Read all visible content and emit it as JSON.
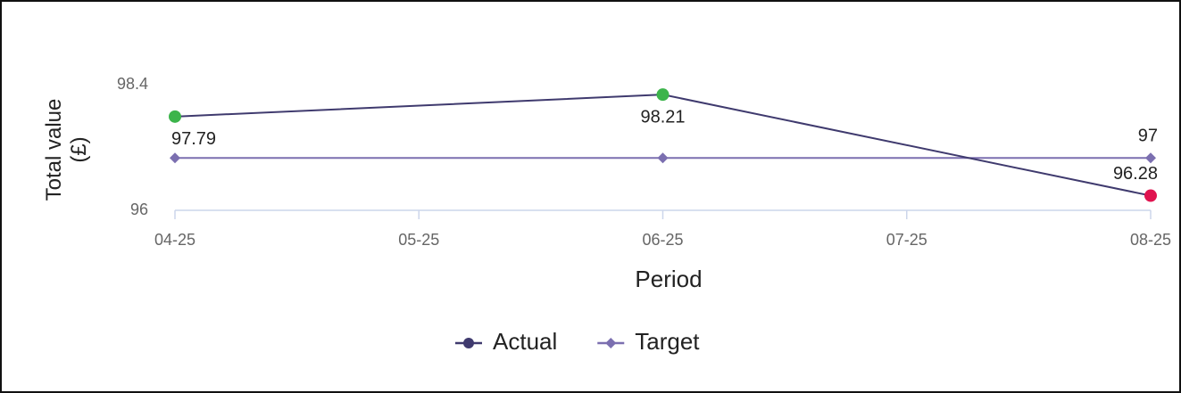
{
  "chart_data": {
    "type": "line",
    "x_label": "Period",
    "y_label": "Total value (£)",
    "categories": [
      "04-25",
      "05-25",
      "06-25",
      "07-25",
      "08-25"
    ],
    "ylim": [
      96,
      98.4
    ],
    "yticks": [
      96,
      98.4
    ],
    "legend": "bottom",
    "series": [
      {
        "name": "Actual",
        "color": "#3f3a6e",
        "marker": "circle",
        "x": [
          "04-25",
          "06-25",
          "08-25"
        ],
        "values": [
          97.79,
          98.21,
          96.28
        ],
        "marker_colors": [
          "#3cb44b",
          "#3cb44b",
          "#e0134f"
        ],
        "label_points": [
          0,
          1,
          2
        ],
        "label_position": [
          "below",
          "below",
          "above"
        ]
      },
      {
        "name": "Target",
        "color": "#7b6fb0",
        "marker": "diamond",
        "x": [
          "04-25",
          "06-25",
          "08-25"
        ],
        "values": [
          97,
          97,
          97
        ],
        "label_points": [
          2
        ],
        "label_position": [
          "above",
          "above",
          "above"
        ]
      }
    ]
  }
}
